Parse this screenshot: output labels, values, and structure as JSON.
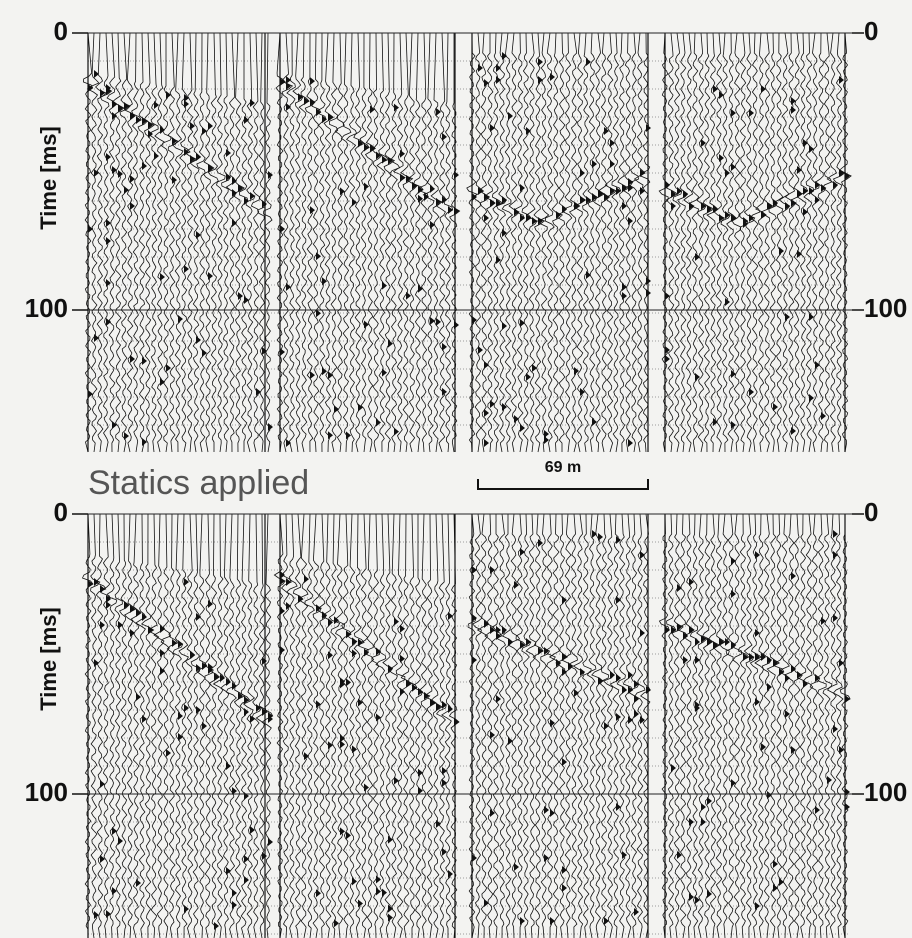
{
  "panels": [
    {
      "y_axis": {
        "label": "Time [ms]",
        "ticks_left": [
          0,
          100
        ],
        "ticks_right": [
          0,
          100
        ]
      }
    },
    {
      "title": "Statics applied",
      "y_axis": {
        "label": "Time [ms]",
        "ticks_left": [
          0,
          100
        ],
        "ticks_right": [
          0,
          100
        ]
      }
    }
  ],
  "scale_bar": {
    "label": "69 m"
  }
}
